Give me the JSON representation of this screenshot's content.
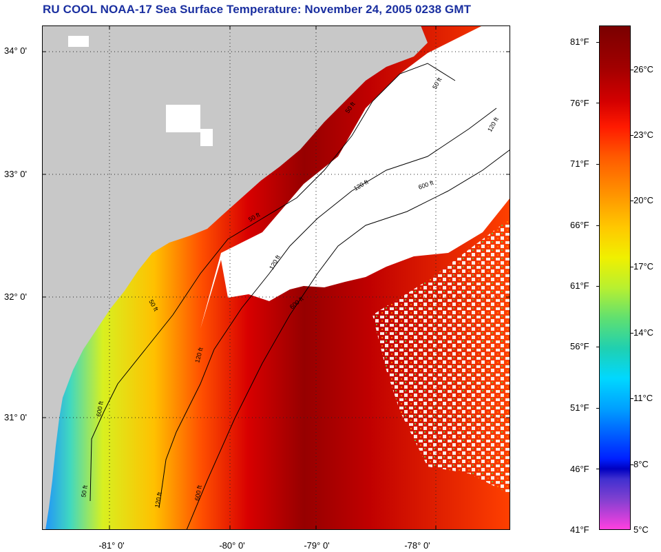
{
  "title": "RU COOL  NOAA-17  Sea Surface Temperature:  November 24, 2005 0238 GMT",
  "map": {
    "lat_labels": [
      "34° 0'",
      "33° 0'",
      "32° 0'",
      "31° 0'"
    ],
    "lon_labels": [
      "-81° 0'",
      "-80° 0'",
      "-79° 0'",
      "-78° 0'"
    ],
    "contour_labels": [
      "50 ft",
      "50 ft",
      "50 ft",
      "50 ft",
      "50 ft",
      "120 ft",
      "120 ft",
      "120 ft",
      "120 ft",
      "120 ft",
      "600 ft",
      "600 ft",
      "600 ft",
      "600 ft"
    ],
    "colors": {
      "land": "#c8c8c8",
      "cloud": "#ffffff",
      "warm": "#9a0000",
      "cool": "#ffd400"
    }
  },
  "colorbar": {
    "fahrenheit": [
      "81°F",
      "76°F",
      "71°F",
      "66°F",
      "61°F",
      "56°F",
      "51°F",
      "46°F",
      "41°F"
    ],
    "celsius": [
      "26°C",
      "23°C",
      "20°C",
      "17°C",
      "14°C",
      "11°C",
      "8°C",
      "5°C"
    ]
  }
}
